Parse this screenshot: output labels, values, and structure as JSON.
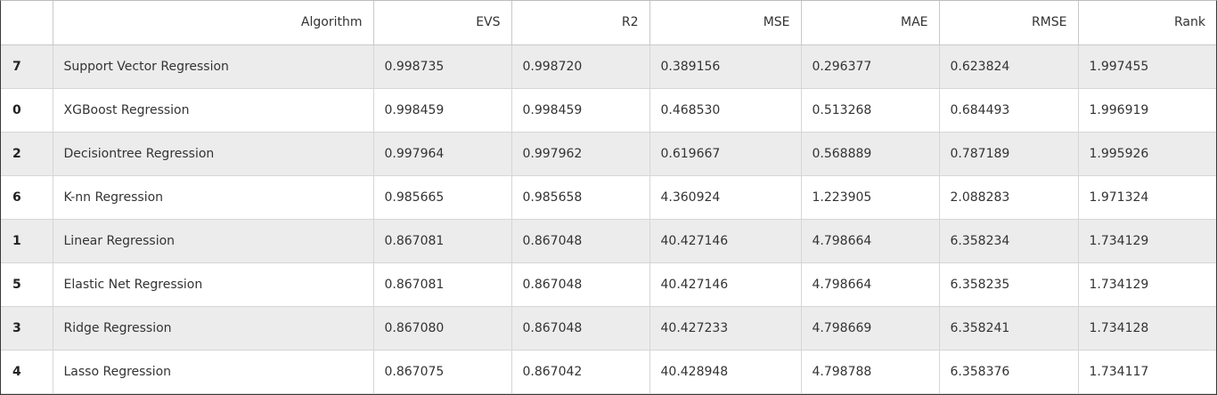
{
  "table": {
    "headers": [
      "",
      "Algorithm",
      "EVS",
      "R2",
      "MSE",
      "MAE",
      "RMSE",
      "Rank"
    ],
    "rows": [
      [
        "7",
        "Support Vector Regression",
        "0.998735",
        "0.998720",
        "0.389156",
        "0.296377",
        "0.623824",
        "1.997455"
      ],
      [
        "0",
        "XGBoost Regression",
        "0.998459",
        "0.998459",
        "0.468530",
        "0.513268",
        "0.684493",
        "1.996919"
      ],
      [
        "2",
        "Decisiontree Regression",
        "0.997964",
        "0.997962",
        "0.619667",
        "0.568889",
        "0.787189",
        "1.995926"
      ],
      [
        "6",
        "K-nn Regression",
        "0.985665",
        "0.985658",
        "4.360924",
        "1.223905",
        "2.088283",
        "1.971324"
      ],
      [
        "1",
        "Linear Regression",
        "0.867081",
        "0.867048",
        "40.427146",
        "4.798664",
        "6.358234",
        "1.734129"
      ],
      [
        "5",
        "Elastic Net Regression",
        "0.867081",
        "0.867048",
        "40.427146",
        "4.798664",
        "6.358235",
        "1.734129"
      ],
      [
        "3",
        "Ridge Regression",
        "0.867080",
        "0.867048",
        "40.427233",
        "4.798669",
        "6.358241",
        "1.734128"
      ],
      [
        "4",
        "Lasso Regression",
        "0.867075",
        "0.867042",
        "40.428948",
        "4.798788",
        "6.358376",
        "1.734117"
      ]
    ]
  },
  "colors": {
    "stripe": "#ececec",
    "border": "#d6d6d6",
    "text": "#333333"
  }
}
